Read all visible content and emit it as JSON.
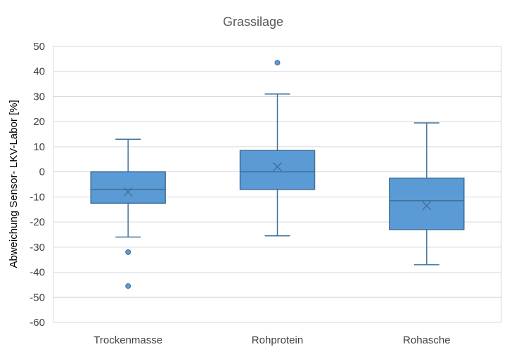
{
  "chart_data": {
    "type": "box",
    "title": "Grassilage",
    "xlabel": "",
    "ylabel": "Abweichung Sensor- LKV-Labor [%]",
    "ylim": [
      -60,
      50
    ],
    "yticks": [
      50,
      40,
      30,
      20,
      10,
      0,
      -10,
      -20,
      -30,
      -40,
      -50,
      -60
    ],
    "ytick_labels": [
      "50",
      "40",
      "30",
      "20",
      "10",
      "0",
      "-10",
      "-20",
      "-30",
      "-40",
      "-50",
      "-60"
    ],
    "grid": true,
    "legend": "none",
    "colors": {
      "box_fill": "#5b9bd5",
      "box_stroke": "#41719c",
      "grid": "#d9d9d9",
      "mean_marker": "#41719c"
    },
    "categories": [
      "Trockenmasse",
      "Rohprotein",
      "Rohasche"
    ],
    "boxes": [
      {
        "category": "Trockenmasse",
        "whisker_low": -26,
        "q1": -12.5,
        "median": -7,
        "q3": 0,
        "whisker_high": 13,
        "mean": -8,
        "outliers": [
          -32,
          -45.5
        ]
      },
      {
        "category": "Rohprotein",
        "whisker_low": -25.5,
        "q1": -7,
        "median": 0,
        "q3": 8.5,
        "whisker_high": 31,
        "mean": 2,
        "outliers": [
          43.5
        ]
      },
      {
        "category": "Rohasche",
        "whisker_low": -37,
        "q1": -23,
        "median": -11.5,
        "q3": -2.5,
        "whisker_high": 19.5,
        "mean": -13.5,
        "outliers": []
      }
    ]
  }
}
